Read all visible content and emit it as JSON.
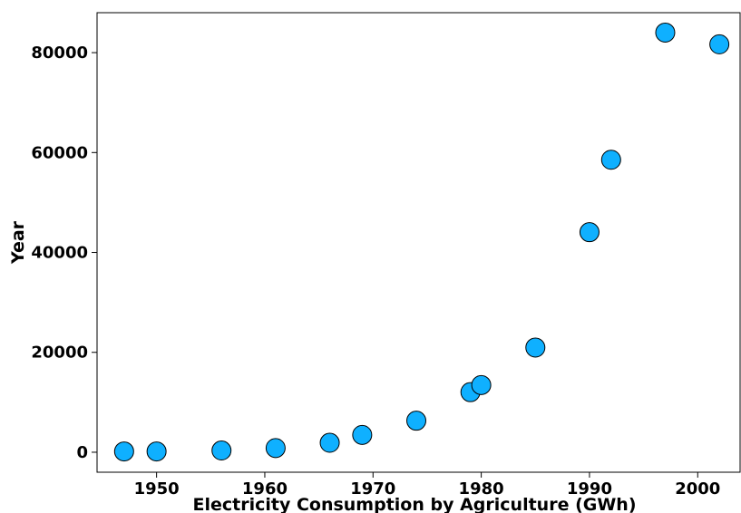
{
  "chart_data": {
    "type": "scatter",
    "title": "",
    "xlabel": "Electricity Consumption by Agriculture (GWh)",
    "ylabel": "Year",
    "xlim": [
      1944.5,
      2004
    ],
    "ylim": [
      -4000,
      88000
    ],
    "x_ticks": [
      1950,
      1960,
      1970,
      1980,
      1990,
      2000
    ],
    "y_ticks": [
      0,
      20000,
      40000,
      60000,
      80000
    ],
    "grid": false,
    "legend": "none",
    "point_color": "#0fb0ff",
    "edge_color": "#000000",
    "points": [
      {
        "x": 1947,
        "y": 162
      },
      {
        "x": 1950,
        "y": 162
      },
      {
        "x": 1956,
        "y": 350
      },
      {
        "x": 1961,
        "y": 833
      },
      {
        "x": 1966,
        "y": 1892
      },
      {
        "x": 1969,
        "y": 3465
      },
      {
        "x": 1974,
        "y": 6310
      },
      {
        "x": 1979,
        "y": 12028
      },
      {
        "x": 1980,
        "y": 13452
      },
      {
        "x": 1985,
        "y": 20961
      },
      {
        "x": 1990,
        "y": 44056
      },
      {
        "x": 1992,
        "y": 58557
      },
      {
        "x": 1997,
        "y": 84019
      },
      {
        "x": 2002,
        "y": 81673
      }
    ]
  }
}
